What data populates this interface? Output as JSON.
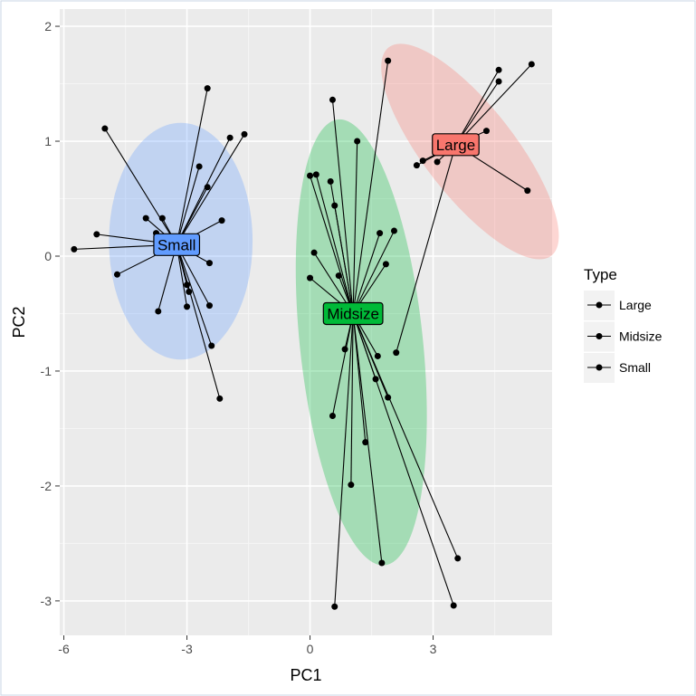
{
  "chart_data": {
    "type": "scatter",
    "xlabel": "PC1",
    "ylabel": "PC2",
    "xlim": [
      -6.1,
      5.9
    ],
    "ylim": [
      -3.3,
      2.15
    ],
    "x_ticks": [
      -6,
      -3,
      0,
      3
    ],
    "x_tick_labels": [
      "-6",
      "-3",
      "0",
      "3"
    ],
    "y_ticks": [
      -3,
      -2,
      -1,
      0,
      1,
      2
    ],
    "y_tick_labels": [
      "-3",
      "-2",
      "-1",
      "0",
      "1",
      "2"
    ],
    "grid": true,
    "legend": {
      "title": "Type",
      "placement": "right",
      "entries": [
        "Large",
        "Midsize",
        "Small"
      ]
    },
    "series": [
      {
        "name": "Large",
        "color": "#F8766D",
        "centroid": {
          "label": "Large",
          "x": 3.55,
          "y": 0.97
        },
        "ellipse": {
          "cx": 3.9,
          "cy": 0.91,
          "rx_data": 1.1,
          "ry_data": 1.15,
          "angle_deg": -38
        },
        "points": [
          [
            5.4,
            1.67
          ],
          [
            4.6,
            1.62
          ],
          [
            4.6,
            1.52
          ],
          [
            4.3,
            1.09
          ],
          [
            5.3,
            0.57
          ],
          [
            2.6,
            0.79
          ],
          [
            2.75,
            0.83
          ],
          [
            3.1,
            0.82
          ],
          [
            2.1,
            -0.84
          ]
        ]
      },
      {
        "name": "Midsize",
        "color": "#00BA38",
        "centroid": {
          "label": "Midsize",
          "x": 1.05,
          "y": -0.5
        },
        "ellipse": {
          "cx": 1.25,
          "cy": -0.75,
          "rx_data": 1.5,
          "ry_data": 1.95,
          "angle_deg": -6
        },
        "points": [
          [
            1.9,
            1.7
          ],
          [
            0.55,
            1.36
          ],
          [
            1.15,
            1.0
          ],
          [
            0.0,
            0.7
          ],
          [
            0.15,
            0.71
          ],
          [
            0.5,
            0.65
          ],
          [
            0.6,
            0.44
          ],
          [
            1.7,
            0.2
          ],
          [
            2.05,
            0.22
          ],
          [
            0.1,
            0.03
          ],
          [
            1.85,
            -0.07
          ],
          [
            0.0,
            -0.19
          ],
          [
            0.7,
            -0.17
          ],
          [
            1.65,
            -0.87
          ],
          [
            0.85,
            -0.81
          ],
          [
            1.6,
            -1.07
          ],
          [
            1.9,
            -1.23
          ],
          [
            0.55,
            -1.39
          ],
          [
            1.35,
            -1.62
          ],
          [
            1.0,
            -1.99
          ],
          [
            1.75,
            -2.67
          ],
          [
            3.6,
            -2.63
          ],
          [
            3.5,
            -3.04
          ],
          [
            0.6,
            -3.05
          ]
        ]
      },
      {
        "name": "Small",
        "color": "#619CFF",
        "centroid": {
          "label": "Small",
          "x": -3.25,
          "y": 0.1
        },
        "ellipse": {
          "cx": -3.15,
          "cy": 0.13,
          "rx_data": 1.75,
          "ry_data": 1.03,
          "angle_deg": 0
        },
        "points": [
          [
            -5.0,
            1.11
          ],
          [
            -2.5,
            1.46
          ],
          [
            -1.6,
            1.06
          ],
          [
            -1.95,
            1.03
          ],
          [
            -2.7,
            0.78
          ],
          [
            -2.5,
            0.6
          ],
          [
            -3.6,
            0.33
          ],
          [
            -4.0,
            0.33
          ],
          [
            -2.15,
            0.31
          ],
          [
            -5.2,
            0.19
          ],
          [
            -3.75,
            0.2
          ],
          [
            -5.75,
            0.06
          ],
          [
            -2.45,
            -0.06
          ],
          [
            -4.7,
            -0.16
          ],
          [
            -3.0,
            -0.25
          ],
          [
            -2.95,
            -0.31
          ],
          [
            -2.45,
            -0.43
          ],
          [
            -3.0,
            -0.44
          ],
          [
            -3.7,
            -0.48
          ],
          [
            -2.4,
            -0.78
          ],
          [
            -2.2,
            -1.24
          ]
        ]
      }
    ]
  }
}
